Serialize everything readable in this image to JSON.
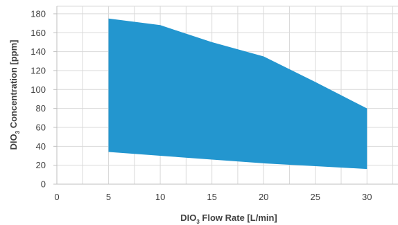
{
  "chart_data": {
    "type": "area",
    "series": [
      {
        "name": "",
        "x": [
          5,
          10,
          15,
          20,
          25,
          30
        ],
        "upper": [
          175,
          168,
          150,
          135,
          108,
          80
        ],
        "lower": [
          34,
          30,
          26,
          22,
          19,
          16
        ]
      }
    ],
    "xlim": [
      0,
      33
    ],
    "ylim": [
      0,
      188
    ],
    "xticks": [
      0,
      5,
      10,
      15,
      20,
      25,
      30
    ],
    "yticks": [
      0,
      20,
      40,
      60,
      80,
      100,
      120,
      140,
      160,
      180
    ],
    "xlabel": {
      "main": "DIO",
      "sub": "3",
      "rest": " Flow Rate [L/min]"
    },
    "ylabel": {
      "main": "DIO",
      "sub": "3",
      "rest": " Concentration [ppm]"
    },
    "grid": true,
    "colors": {
      "fill": "#2396cf",
      "grid": "#d9d9d9",
      "axis": "#bfbfbf"
    }
  }
}
